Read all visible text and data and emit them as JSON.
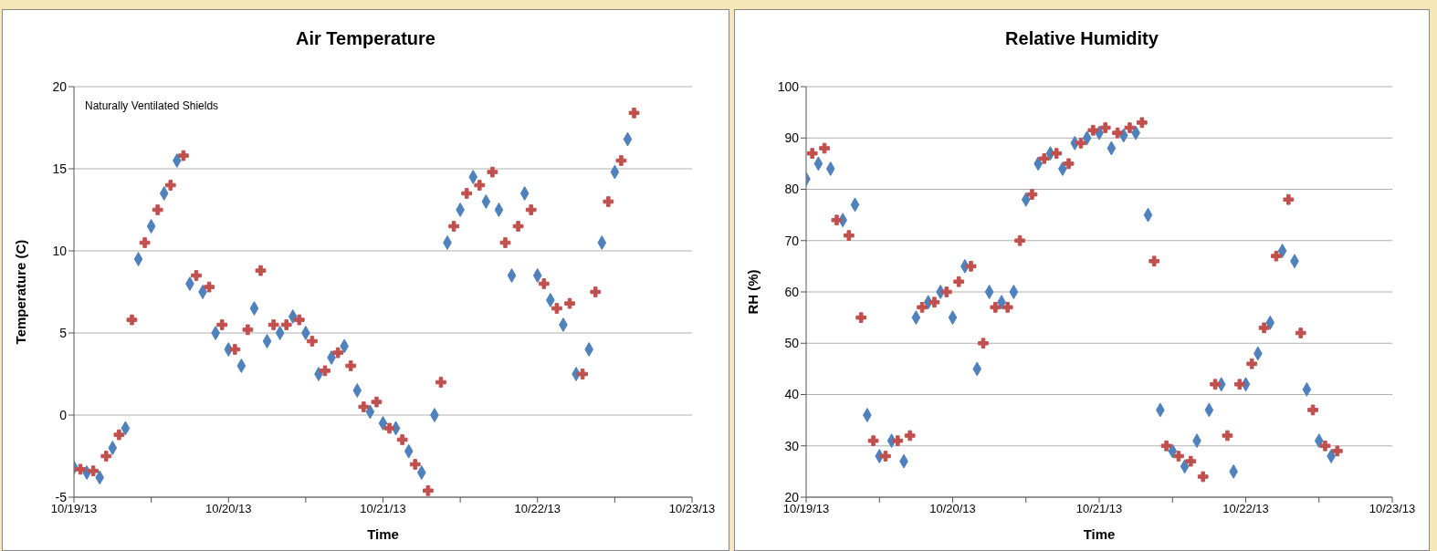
{
  "chart_data": [
    {
      "type": "scatter",
      "title": "Air Temperature",
      "xlabel": "Time",
      "ylabel": "Temperature (C)",
      "annotations": [
        "Naturally Ventilated Shields"
      ],
      "grid": "y",
      "xlim": [
        "--10-19",
        "--10-23"
      ],
      "xticks": [
        {
          "value": "--10-19",
          "label": "10/19/13"
        },
        {
          "value": "--10-19T12:00",
          "label": null
        },
        {
          "value": "--10-20",
          "label": "10/20/13"
        },
        {
          "value": "--10-20T12:00",
          "label": null
        },
        {
          "value": "--10-21",
          "label": "10/21/13"
        },
        {
          "value": "--10-21T12:00",
          "label": null
        },
        {
          "value": "--10-22",
          "label": "10/22/13"
        },
        {
          "value": "--10-22T12:00",
          "label": null
        },
        {
          "value": "--10-23",
          "label": "10/23/13"
        }
      ],
      "ylim": [
        -5,
        20
      ],
      "yticks": [
        -5,
        0,
        5,
        10,
        15,
        20
      ],
      "series": [
        {
          "color": "#4f81bd",
          "marker": "diamond",
          "x": [
            "--10-19T00:00",
            "--10-19T02:00",
            "--10-19T04:00",
            "--10-19T06:00",
            "--10-19T08:00",
            "--10-19T10:00",
            "--10-19T12:00",
            "--10-19T14:00",
            "--10-19T16:00",
            "--10-19T18:00",
            "--10-19T20:00",
            "--10-19T22:00",
            "--10-20T00:00",
            "--10-20T02:00",
            "--10-20T04:00",
            "--10-20T06:00",
            "--10-20T08:00",
            "--10-20T10:00",
            "--10-20T12:00",
            "--10-20T14:00",
            "--10-20T16:00",
            "--10-20T18:00",
            "--10-20T20:00",
            "--10-20T22:00",
            "--10-21T00:00",
            "--10-21T02:00",
            "--10-21T04:00",
            "--10-21T06:00",
            "--10-21T08:00",
            "--10-21T10:00",
            "--10-21T12:00",
            "--10-21T14:00",
            "--10-21T16:00",
            "--10-21T18:00",
            "--10-21T20:00",
            "--10-21T22:00",
            "--10-22T00:00",
            "--10-22T02:00",
            "--10-22T04:00",
            "--10-22T06:00",
            "--10-22T08:00",
            "--10-22T10:00",
            "--10-22T12:00",
            "--10-22T14:00"
          ],
          "values": [
            -3.2,
            -3.5,
            -3.8,
            -2.0,
            -0.8,
            9.5,
            11.5,
            13.5,
            15.5,
            8.0,
            7.5,
            5.0,
            4.0,
            3.0,
            6.5,
            4.5,
            5.0,
            6.0,
            5.0,
            2.5,
            3.5,
            4.2,
            1.5,
            0.2,
            -0.5,
            -0.8,
            -2.2,
            -3.5,
            0,
            10.5,
            12.5,
            14.5,
            13.0,
            12.5,
            8.5,
            13.5,
            8.5,
            7.0,
            5.5,
            2.5,
            4.0,
            10.5,
            14.8,
            16.8
          ]
        },
        {
          "color": "#c0504d",
          "marker": "cross",
          "x": [
            "--10-19T01:00",
            "--10-19T03:00",
            "--10-19T05:00",
            "--10-19T07:00",
            "--10-19T09:00",
            "--10-19T11:00",
            "--10-19T13:00",
            "--10-19T15:00",
            "--10-19T17:00",
            "--10-19T19:00",
            "--10-19T21:00",
            "--10-19T23:00",
            "--10-20T01:00",
            "--10-20T03:00",
            "--10-20T05:00",
            "--10-20T07:00",
            "--10-20T09:00",
            "--10-20T11:00",
            "--10-20T13:00",
            "--10-20T15:00",
            "--10-20T17:00",
            "--10-20T19:00",
            "--10-20T21:00",
            "--10-20T23:00",
            "--10-21T01:00",
            "--10-21T03:00",
            "--10-21T05:00",
            "--10-21T07:00",
            "--10-21T09:00",
            "--10-21T11:00",
            "--10-21T13:00",
            "--10-21T15:00",
            "--10-21T17:00",
            "--10-21T19:00",
            "--10-21T21:00",
            "--10-21T23:00",
            "--10-22T01:00",
            "--10-22T03:00",
            "--10-22T05:00",
            "--10-22T07:00",
            "--10-22T09:00",
            "--10-22T11:00",
            "--10-22T13:00",
            "--10-22T15:00"
          ],
          "values": [
            -3.3,
            -3.4,
            -2.5,
            -1.2,
            5.8,
            10.5,
            12.5,
            14,
            15.8,
            8.5,
            7.8,
            5.5,
            4.0,
            5.2,
            8.8,
            5.5,
            5.5,
            5.8,
            4.5,
            2.7,
            3.8,
            3.0,
            0.5,
            0.8,
            -0.8,
            -1.5,
            -3.0,
            -4.6,
            2.0,
            11.5,
            13.5,
            14.0,
            14.8,
            10.5,
            11.5,
            12.5,
            8.0,
            6.5,
            6.8,
            2.5,
            7.5,
            13,
            15.5,
            18.4
          ]
        }
      ]
    },
    {
      "type": "scatter",
      "title": "Relative Humidity",
      "xlabel": "Time",
      "ylabel": "RH (%)",
      "grid": "y",
      "xlim": [
        "--10-19",
        "--10-23"
      ],
      "xticks": [
        {
          "value": "--10-19",
          "label": "10/19/13"
        },
        {
          "value": "--10-19T12:00",
          "label": null
        },
        {
          "value": "--10-20",
          "label": "10/20/13"
        },
        {
          "value": "--10-20T12:00",
          "label": null
        },
        {
          "value": "--10-21",
          "label": "10/21/13"
        },
        {
          "value": "--10-21T12:00",
          "label": null
        },
        {
          "value": "--10-22",
          "label": "10/22/13"
        },
        {
          "value": "--10-22T12:00",
          "label": null
        },
        {
          "value": "--10-23",
          "label": "10/23/13"
        }
      ],
      "ylim": [
        20,
        100
      ],
      "yticks": [
        20,
        30,
        40,
        50,
        60,
        70,
        80,
        90,
        100
      ],
      "series": [
        {
          "color": "#4f81bd",
          "marker": "diamond",
          "x": [
            "--10-19T00:00",
            "--10-19T02:00",
            "--10-19T04:00",
            "--10-19T06:00",
            "--10-19T08:00",
            "--10-19T10:00",
            "--10-19T12:00",
            "--10-19T14:00",
            "--10-19T16:00",
            "--10-19T18:00",
            "--10-19T20:00",
            "--10-19T22:00",
            "--10-20T00:00",
            "--10-20T02:00",
            "--10-20T04:00",
            "--10-20T06:00",
            "--10-20T08:00",
            "--10-20T10:00",
            "--10-20T12:00",
            "--10-20T14:00",
            "--10-20T16:00",
            "--10-20T18:00",
            "--10-20T20:00",
            "--10-20T22:00",
            "--10-21T00:00",
            "--10-21T02:00",
            "--10-21T04:00",
            "--10-21T06:00",
            "--10-21T08:00",
            "--10-21T10:00",
            "--10-21T12:00",
            "--10-21T14:00",
            "--10-21T16:00",
            "--10-21T18:00",
            "--10-21T20:00",
            "--10-21T22:00",
            "--10-22T00:00",
            "--10-22T02:00",
            "--10-22T04:00",
            "--10-22T06:00",
            "--10-22T08:00",
            "--10-22T10:00",
            "--10-22T12:00",
            "--10-22T14:00"
          ],
          "values": [
            82,
            85,
            84,
            74,
            77,
            36,
            28,
            31,
            27,
            55,
            58,
            60,
            55,
            65,
            45,
            60,
            58,
            60,
            78,
            85,
            87,
            84,
            89,
            90,
            91,
            88,
            90.5,
            91,
            75,
            37,
            29,
            26,
            31,
            37,
            42,
            25,
            42,
            48,
            54,
            68,
            66,
            41,
            31,
            28
          ]
        },
        {
          "color": "#c0504d",
          "marker": "cross",
          "x": [
            "--10-19T01:00",
            "--10-19T03:00",
            "--10-19T05:00",
            "--10-19T07:00",
            "--10-19T09:00",
            "--10-19T11:00",
            "--10-19T13:00",
            "--10-19T15:00",
            "--10-19T17:00",
            "--10-19T19:00",
            "--10-19T21:00",
            "--10-19T23:00",
            "--10-20T01:00",
            "--10-20T03:00",
            "--10-20T05:00",
            "--10-20T07:00",
            "--10-20T09:00",
            "--10-20T11:00",
            "--10-20T13:00",
            "--10-20T15:00",
            "--10-20T17:00",
            "--10-20T19:00",
            "--10-20T21:00",
            "--10-20T23:00",
            "--10-21T01:00",
            "--10-21T03:00",
            "--10-21T05:00",
            "--10-21T07:00",
            "--10-21T09:00",
            "--10-21T11:00",
            "--10-21T13:00",
            "--10-21T15:00",
            "--10-21T17:00",
            "--10-21T19:00",
            "--10-21T21:00",
            "--10-21T23:00",
            "--10-22T01:00",
            "--10-22T03:00",
            "--10-22T05:00",
            "--10-22T07:00",
            "--10-22T09:00",
            "--10-22T11:00",
            "--10-22T13:00",
            "--10-22T15:00"
          ],
          "values": [
            87,
            88,
            74,
            71,
            55,
            31,
            28,
            31,
            32,
            57,
            58,
            60,
            62,
            65,
            50,
            57,
            57,
            70,
            79,
            86,
            87,
            85,
            89,
            91.5,
            92,
            91,
            92,
            93,
            66,
            30,
            28,
            27,
            24,
            42,
            32,
            42,
            46,
            53,
            67,
            78,
            52,
            37,
            30,
            29
          ]
        }
      ]
    }
  ]
}
